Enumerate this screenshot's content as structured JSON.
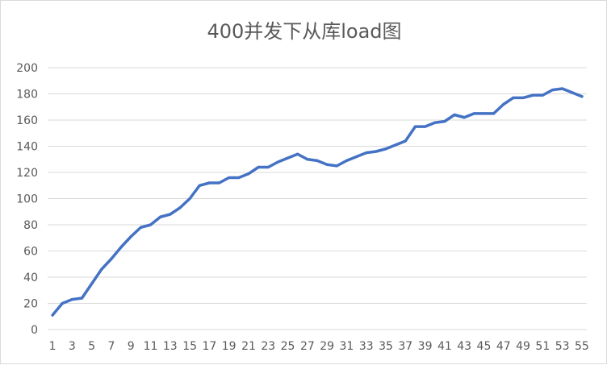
{
  "chart_data": {
    "type": "line",
    "title": "400并发下从库load图",
    "xlabel": "",
    "ylabel": "",
    "ylim": [
      0,
      200
    ],
    "yticks": [
      0,
      20,
      40,
      60,
      80,
      100,
      120,
      140,
      160,
      180,
      200
    ],
    "xtick_labels": [
      "1",
      "3",
      "5",
      "7",
      "9",
      "11",
      "13",
      "15",
      "17",
      "19",
      "21",
      "23",
      "25",
      "27",
      "29",
      "31",
      "33",
      "35",
      "37",
      "39",
      "41",
      "43",
      "45",
      "47",
      "49",
      "51",
      "53",
      "55"
    ],
    "grid": true,
    "legend": "none",
    "line_color": "#4472c4",
    "x": [
      1,
      2,
      3,
      4,
      5,
      6,
      7,
      8,
      9,
      10,
      11,
      12,
      13,
      14,
      15,
      16,
      17,
      18,
      19,
      20,
      21,
      22,
      23,
      24,
      25,
      26,
      27,
      28,
      29,
      30,
      31,
      32,
      33,
      34,
      35,
      36,
      37,
      38,
      39,
      40,
      41,
      42,
      43,
      44,
      45,
      46,
      47,
      48,
      49,
      50,
      51,
      52,
      53,
      54,
      55
    ],
    "series": [
      {
        "name": "",
        "values": [
          11,
          20,
          23,
          24,
          35,
          46,
          54,
          63,
          71,
          78,
          80,
          86,
          88,
          93,
          100,
          110,
          112,
          112,
          116,
          116,
          119,
          124,
          124,
          128,
          131,
          134,
          130,
          129,
          126,
          125,
          129,
          132,
          135,
          136,
          138,
          141,
          144,
          155,
          155,
          158,
          159,
          164,
          162,
          165,
          165,
          165,
          172,
          177,
          177,
          179,
          179,
          183,
          184,
          181,
          178
        ]
      }
    ]
  }
}
